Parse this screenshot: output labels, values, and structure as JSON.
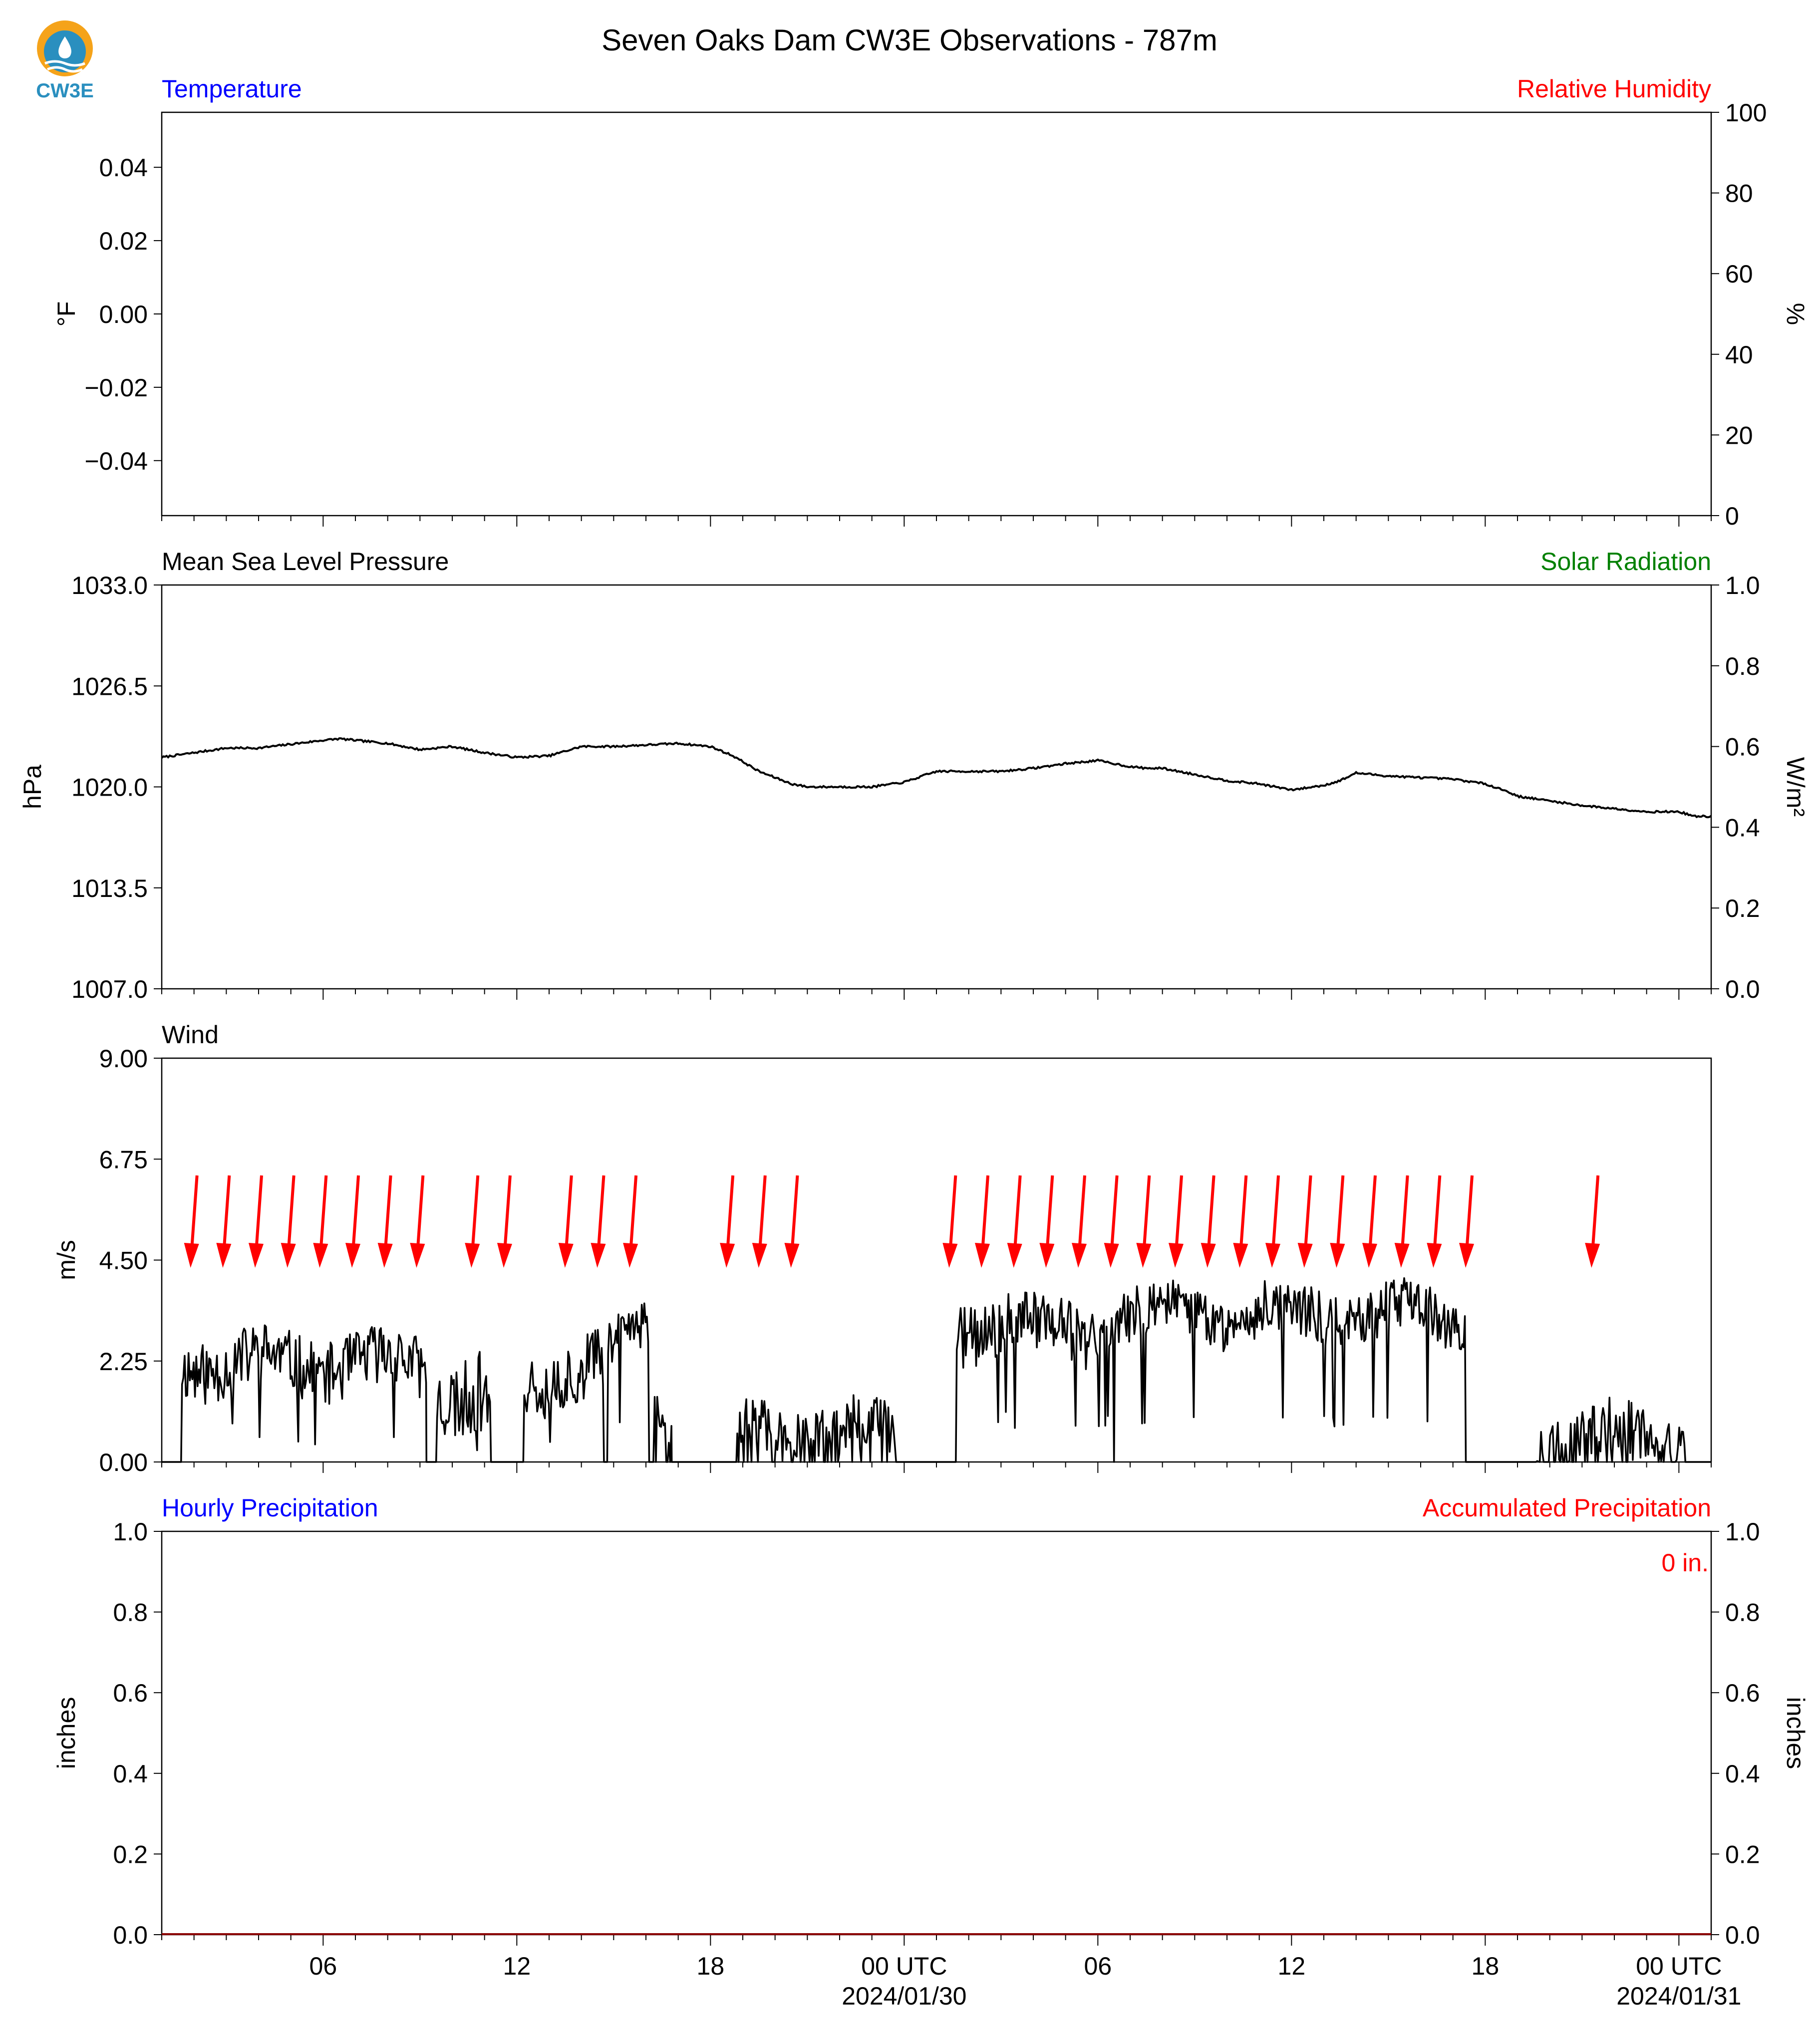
{
  "title": "Seven Oaks Dam CW3E Observations - 787m",
  "logo": {
    "text": "CW3E",
    "colors": {
      "sun": "#f5a31a",
      "water": "#2a8fbf",
      "text": "#2a8fbf"
    }
  },
  "colors": {
    "blue": "#0000ff",
    "red": "#ff0000",
    "green": "#008000",
    "black": "#000000"
  },
  "x_axis": {
    "range_hours": [
      -5,
      43
    ],
    "tick_labels": [
      {
        "hour": 0,
        "label": "06",
        "sublabel": ""
      },
      {
        "hour": 6,
        "label": "12",
        "sublabel": ""
      },
      {
        "hour": 12,
        "label": "18",
        "sublabel": ""
      },
      {
        "hour": 18,
        "label": "00 UTC",
        "sublabel": "2024/01/30"
      },
      {
        "hour": 24,
        "label": "06",
        "sublabel": ""
      },
      {
        "hour": 30,
        "label": "12",
        "sublabel": ""
      },
      {
        "hour": 36,
        "label": "18",
        "sublabel": ""
      },
      {
        "hour": 42,
        "label": "00 UTC",
        "sublabel": "2024/01/31"
      }
    ]
  },
  "chart_data": [
    {
      "type": "line",
      "panel": "temperature",
      "left_title": "Temperature",
      "right_title": "Relative Humidity",
      "ylabel_left": "°F",
      "ylabel_right": "%",
      "ylim_left": [
        -0.055,
        0.055
      ],
      "ylim_right": [
        0,
        100
      ],
      "yticks_left": [
        "0.04",
        "0.02",
        "0.00",
        "−0.02",
        "−0.04"
      ],
      "yticks_left_values": [
        0.04,
        0.02,
        0.0,
        -0.02,
        -0.04
      ],
      "yticks_right": [
        "100",
        "80",
        "60",
        "40",
        "20",
        "0"
      ],
      "yticks_right_values": [
        100,
        80,
        60,
        40,
        20,
        0
      ],
      "series": []
    },
    {
      "type": "line",
      "panel": "pressure",
      "left_title": "Mean Sea Level Pressure",
      "right_title": "Solar Radiation",
      "ylabel_left": "hPa",
      "ylabel_right": "W/m²",
      "ylim_left": [
        1007.0,
        1033.0
      ],
      "ylim_right": [
        0,
        1
      ],
      "yticks_left": [
        "1033.0",
        "1026.5",
        "1020.0",
        "1013.5",
        "1007.0"
      ],
      "yticks_left_values": [
        1033.0,
        1026.5,
        1020.0,
        1013.5,
        1007.0
      ],
      "yticks_right": [
        "1.0",
        "0.8",
        "0.6",
        "0.4",
        "0.2",
        "0.0"
      ],
      "yticks_right_values": [
        1.0,
        0.8,
        0.6,
        0.4,
        0.2,
        0.0
      ],
      "x": [
        -5,
        -3,
        -2,
        0,
        0.5,
        1,
        2,
        2.5,
        3,
        4,
        5,
        6,
        7,
        8,
        9,
        10,
        11,
        12,
        12.7,
        13.5,
        14.5,
        15,
        16,
        17,
        18,
        19,
        20,
        21,
        22,
        23,
        24,
        25,
        25.5,
        26,
        27,
        28,
        29,
        30,
        31,
        31.5,
        32,
        33,
        34,
        35,
        36,
        36.7,
        37,
        38,
        39,
        40,
        41,
        42,
        42.5,
        43
      ],
      "values": [
        1021.9,
        1022.5,
        1022.5,
        1023.0,
        1023.1,
        1023.0,
        1022.8,
        1022.6,
        1022.4,
        1022.6,
        1022.2,
        1021.9,
        1022.0,
        1022.6,
        1022.6,
        1022.7,
        1022.8,
        1022.6,
        1022.0,
        1021.0,
        1020.2,
        1020.0,
        1020.0,
        1020.0,
        1020.3,
        1021.0,
        1021.0,
        1021.0,
        1021.2,
        1021.5,
        1021.7,
        1021.3,
        1021.2,
        1021.2,
        1020.8,
        1020.4,
        1020.2,
        1019.8,
        1020.1,
        1020.4,
        1020.9,
        1020.7,
        1020.6,
        1020.5,
        1020.2,
        1019.7,
        1019.4,
        1019.1,
        1018.8,
        1018.6,
        1018.4,
        1018.4,
        1018.1,
        1018.1
      ],
      "series": [
        {
          "name": "",
          "color": "#000000"
        }
      ]
    },
    {
      "type": "line",
      "panel": "wind",
      "left_title": "Wind",
      "ylabel_left": "m/s",
      "ylim_left": [
        0,
        9.0
      ],
      "yticks_left": [
        "9.00",
        "6.75",
        "4.50",
        "2.25",
        "0.00"
      ],
      "yticks_left_values": [
        9.0,
        6.75,
        4.5,
        2.25,
        0.0
      ],
      "segments": [
        {
          "start": -4.4,
          "end": 3.2,
          "base": 2.2,
          "amp": 0.7,
          "seed": 11
        },
        {
          "start": 3.5,
          "end": 5.2,
          "base": 1.6,
          "amp": 0.9,
          "seed": 23
        },
        {
          "start": 6.2,
          "end": 8.7,
          "base": 2.0,
          "amp": 0.8,
          "seed": 37
        },
        {
          "start": 8.8,
          "end": 10.1,
          "base": 2.8,
          "amp": 0.5,
          "seed": 41
        },
        {
          "start": 10.2,
          "end": 10.8,
          "base": 1.0,
          "amp": 0.8,
          "seed": 53
        },
        {
          "start": 12.8,
          "end": 17.8,
          "base": 0.7,
          "amp": 0.6,
          "seed": 61
        },
        {
          "start": 19.6,
          "end": 24.5,
          "base": 3.0,
          "amp": 0.7,
          "seed": 71
        },
        {
          "start": 24.5,
          "end": 35.4,
          "base": 3.3,
          "amp": 0.6,
          "seed": 83
        },
        {
          "start": 37.5,
          "end": 42.2,
          "base": 0.6,
          "amp": 0.6,
          "seed": 97
        }
      ],
      "direction_arrows_hours": [
        -4,
        -3,
        -2,
        -1,
        0,
        1,
        2,
        3,
        4.7,
        5.7,
        7.6,
        8.6,
        9.6,
        12.6,
        13.6,
        14.6,
        19.5,
        20.5,
        21.5,
        22.5,
        23.5,
        24.5,
        25.5,
        26.5,
        27.5,
        28.5,
        29.5,
        30.5,
        31.5,
        32.5,
        33.5,
        34.5,
        35.5,
        39.4
      ],
      "arrow_color": "#ff0000",
      "series": [
        {
          "name": "",
          "color": "#000000"
        }
      ]
    },
    {
      "type": "line",
      "panel": "precipitation",
      "left_title": "Hourly Precipitation",
      "right_title": "Accumulated Precipitation",
      "ylabel_left": "inches",
      "ylabel_right": "inches",
      "ylim_left": [
        0,
        1.0
      ],
      "ylim_right": [
        0,
        1.0
      ],
      "yticks_left": [
        "1.0",
        "0.8",
        "0.6",
        "0.4",
        "0.2",
        "0.0"
      ],
      "yticks_left_values": [
        1.0,
        0.8,
        0.6,
        0.4,
        0.2,
        0.0
      ],
      "yticks_right": [
        "1.0",
        "0.8",
        "0.6",
        "0.4",
        "0.2",
        "0.0"
      ],
      "yticks_right_values": [
        1.0,
        0.8,
        0.6,
        0.4,
        0.2,
        0.0
      ],
      "accumulated_text": "0 in.",
      "accumulated_value": 0,
      "series": [
        {
          "name": "",
          "color": "#8b0000"
        }
      ]
    }
  ]
}
